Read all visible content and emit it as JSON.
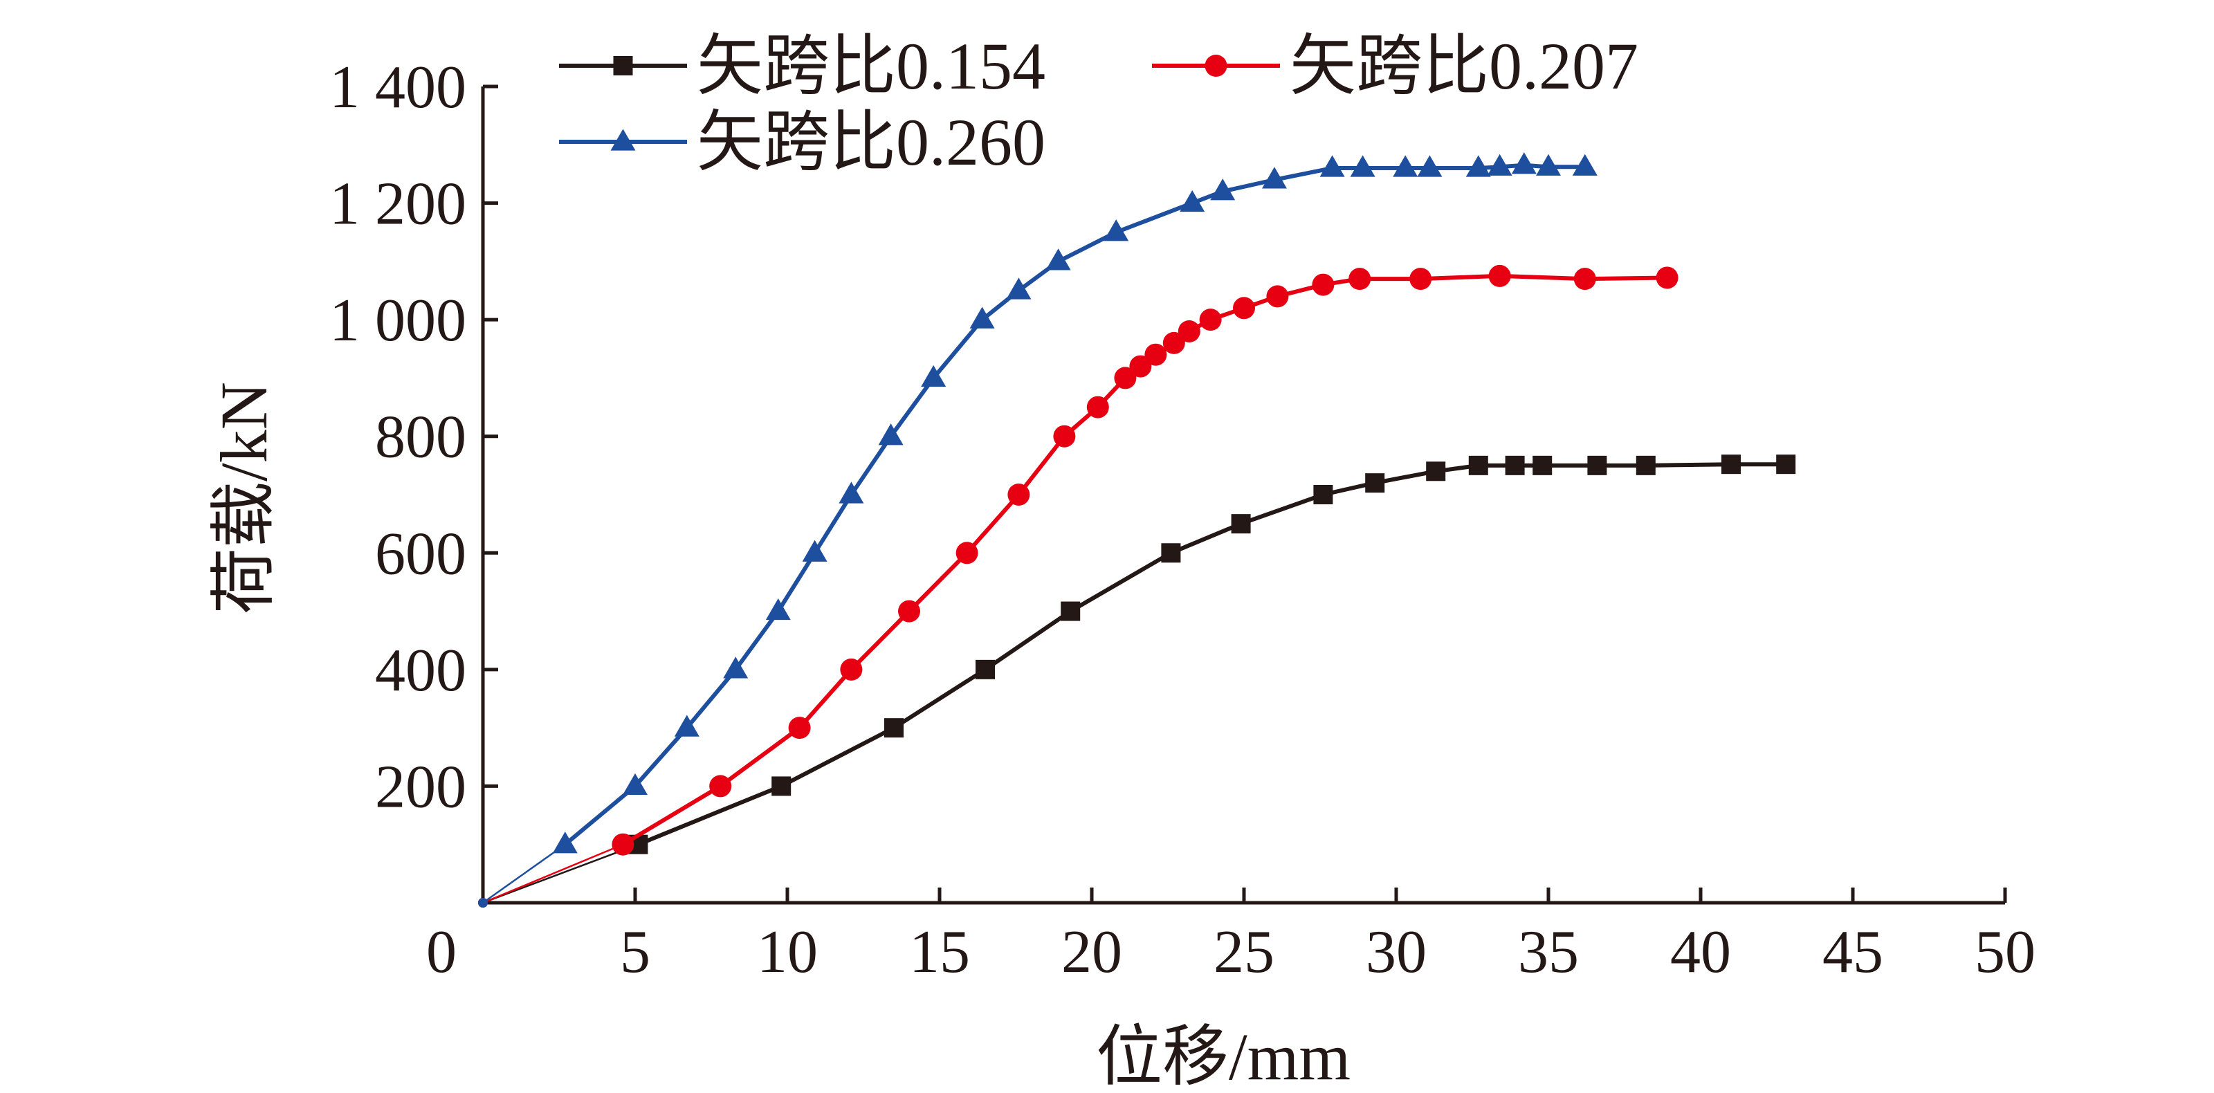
{
  "chart_data": {
    "type": "line",
    "xlabel": "位移/mm",
    "ylabel": "荷载/kN",
    "xlim": [
      0,
      50
    ],
    "ylim": [
      0,
      1400
    ],
    "x_ticks": [
      0,
      5,
      10,
      15,
      20,
      25,
      30,
      35,
      40,
      45,
      50
    ],
    "x_tick_labels": [
      "0",
      "5",
      "10",
      "15",
      "20",
      "25",
      "30",
      "35",
      "40",
      "45",
      "50"
    ],
    "y_ticks": [
      200,
      400,
      600,
      800,
      1000,
      1200,
      1400
    ],
    "y_tick_labels": [
      "200",
      "400",
      "600",
      "800",
      "1 000",
      "1 200",
      "1 400"
    ],
    "grid": false,
    "legend_position": "top",
    "series": [
      {
        "name": "矢跨比0.154",
        "color": "#231815",
        "marker": "square",
        "x": [
          0,
          5.1,
          9.8,
          13.5,
          16.5,
          19.3,
          22.6,
          24.9,
          27.6,
          29.3,
          31.3,
          32.7,
          33.9,
          34.8,
          36.6,
          38.2,
          41.0,
          42.8
        ],
        "y": [
          0,
          100,
          200,
          300,
          400,
          500,
          600,
          650,
          700,
          720,
          740,
          750,
          750,
          750,
          750,
          750,
          752,
          752
        ]
      },
      {
        "name": "矢跨比0.207",
        "color": "#e60012",
        "marker": "circle",
        "x": [
          0,
          4.6,
          7.8,
          10.4,
          12.1,
          14.0,
          15.9,
          17.6,
          19.1,
          20.2,
          21.1,
          21.6,
          22.1,
          22.7,
          23.2,
          23.9,
          25.0,
          26.1,
          27.6,
          28.8,
          30.8,
          33.4,
          36.2,
          38.9
        ],
        "y": [
          0,
          100,
          200,
          300,
          400,
          500,
          600,
          700,
          800,
          850,
          900,
          920,
          940,
          960,
          980,
          1000,
          1020,
          1040,
          1060,
          1070,
          1070,
          1075,
          1070,
          1072
        ]
      },
      {
        "name": "矢跨比0.260",
        "color": "#1d4f9e",
        "marker": "triangle",
        "x": [
          0,
          2.7,
          5.0,
          6.7,
          8.3,
          9.7,
          10.9,
          12.1,
          13.4,
          14.8,
          16.4,
          17.6,
          18.9,
          20.8,
          23.3,
          24.3,
          26.0,
          27.9,
          28.9,
          30.3,
          31.1,
          32.7,
          33.4,
          34.2,
          35.0,
          36.2
        ],
        "y": [
          0,
          100,
          200,
          300,
          400,
          500,
          600,
          700,
          800,
          900,
          1000,
          1050,
          1100,
          1150,
          1200,
          1220,
          1240,
          1260,
          1260,
          1260,
          1260,
          1260,
          1262,
          1265,
          1262,
          1262
        ]
      }
    ]
  }
}
